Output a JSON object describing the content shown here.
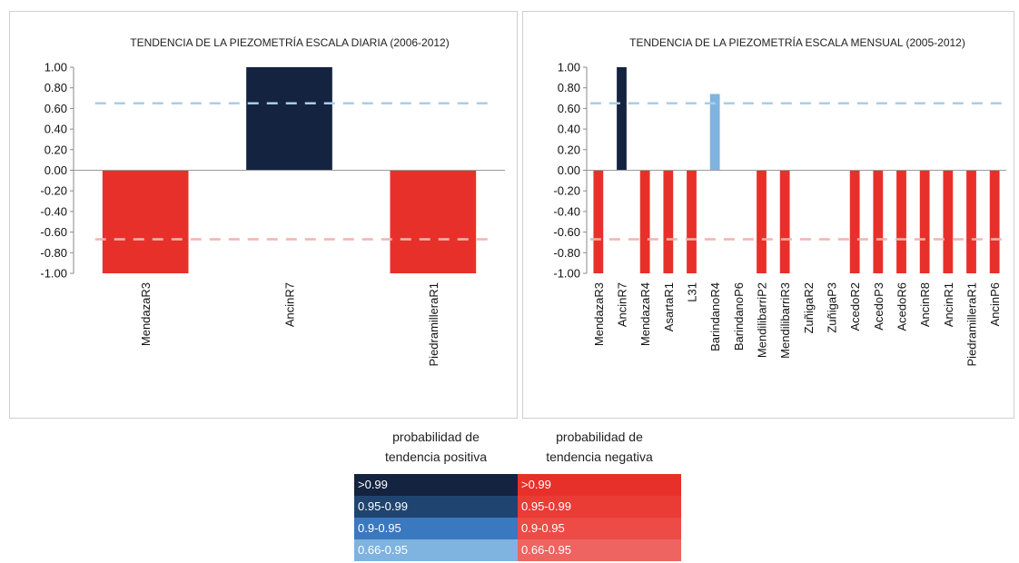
{
  "chart_data": [
    {
      "type": "bar",
      "title": "TENDENCIA DE LA PIEZOMETRÍA ESCALA DIARIA (2006-2012)",
      "categories": [
        "MendazaR3",
        "AncinR7",
        "PiedramilleraR1"
      ],
      "values": [
        -1.0,
        1.0,
        -1.0
      ],
      "bar_colors": [
        "#e8302a",
        "#142340",
        "#e8302a"
      ],
      "ylim": [
        -1.0,
        1.0
      ],
      "yticks": [
        "1.00",
        "0.80",
        "0.60",
        "0.40",
        "0.20",
        "0.00",
        "-0.20",
        "-0.40",
        "-0.60",
        "-0.80",
        "-1.00"
      ],
      "threshold_lines": [
        {
          "value": 0.65,
          "color": "#a9cde9"
        },
        {
          "value": -0.67,
          "color": "#f3b3b1"
        }
      ],
      "grid": false
    },
    {
      "type": "bar",
      "title": "TENDENCIA DE LA PIEZOMETRÍA ESCALA MENSUAL (2005-2012)",
      "categories": [
        "MendazaR3",
        "AncinR7",
        "MendazaR4",
        "AsartaR1",
        "L31",
        "BarindanoR4",
        "BarindanoP6",
        "MendilibarriP2",
        "MendilibarriR3",
        "ZuñigaR2",
        "ZuñigaP3",
        "AcedoR2",
        "AcedoP3",
        "AcedoR6",
        "AncinR8",
        "AncinR1",
        "PiedramilleraR1",
        "AncinP6"
      ],
      "values": [
        -1.0,
        1.0,
        -1.0,
        -1.0,
        -1.0,
        0.74,
        0,
        -1.0,
        -1.0,
        0,
        0,
        -1.0,
        -1.0,
        -1.0,
        -1.0,
        -1.0,
        -1.0,
        -1.0
      ],
      "bar_colors": [
        "#e8302a",
        "#142340",
        "#e8302a",
        "#e8302a",
        "#e8302a",
        "#7fb3e0",
        "#e8302a",
        "#e8302a",
        "#e8302a",
        "#e8302a",
        "#e8302a",
        "#e8302a",
        "#e8302a",
        "#e8302a",
        "#e8302a",
        "#e8302a",
        "#e8302a",
        "#e8302a"
      ],
      "ylim": [
        -1.0,
        1.0
      ],
      "yticks": [
        "1.00",
        "0.80",
        "0.60",
        "0.40",
        "0.20",
        "0.00",
        "-0.20",
        "-0.40",
        "-0.60",
        "-0.80",
        "-1.00"
      ],
      "threshold_lines": [
        {
          "value": 0.65,
          "color": "#a9cde9"
        },
        {
          "value": -0.67,
          "color": "#f3b3b1"
        }
      ],
      "grid": false
    }
  ],
  "legend": {
    "positive": {
      "header_line1": "probabilidad de",
      "header_line2": "tendencia positiva",
      "items": [
        {
          "label": ">0.99",
          "color": "#142340"
        },
        {
          "label": "0.95-0.99",
          "color": "#1f4470"
        },
        {
          "label": "0.9-0.95",
          "color": "#3a78c0"
        },
        {
          "label": "0.66-0.95",
          "color": "#7fb3e0"
        }
      ]
    },
    "negative": {
      "header_line1": "probabilidad de",
      "header_line2": "tendencia negativa",
      "items": [
        {
          "label": ">0.99",
          "color": "#e8302a"
        },
        {
          "label": "0.95-0.99",
          "color": "#ea3b35"
        },
        {
          "label": "0.9-0.95",
          "color": "#ec4b46"
        },
        {
          "label": "0.66-0.95",
          "color": "#ee6461"
        }
      ]
    }
  }
}
